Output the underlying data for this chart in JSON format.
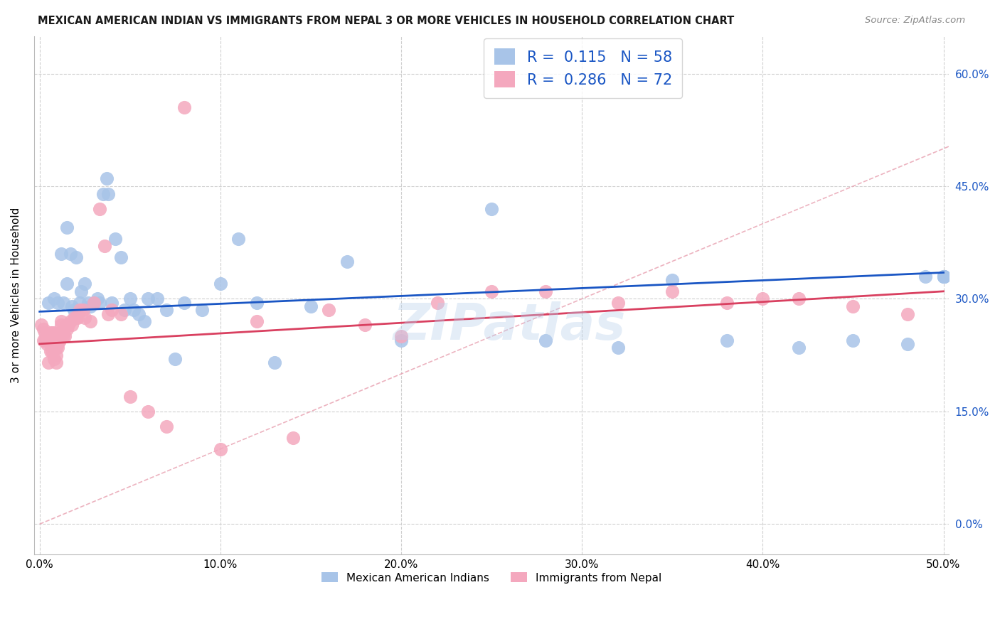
{
  "title": "MEXICAN AMERICAN INDIAN VS IMMIGRANTS FROM NEPAL 3 OR MORE VEHICLES IN HOUSEHOLD CORRELATION CHART",
  "source": "Source: ZipAtlas.com",
  "ylabel": "3 or more Vehicles in Household",
  "blue_R": "0.115",
  "blue_N": "58",
  "pink_R": "0.286",
  "pink_N": "72",
  "blue_color": "#a8c4e8",
  "pink_color": "#f4a8be",
  "blue_line_color": "#1a56c4",
  "pink_line_color": "#d94060",
  "diagonal_color": "#e8a0b0",
  "watermark": "ZIPatlas",
  "xlim": [
    -0.003,
    0.503
  ],
  "ylim": [
    -0.04,
    0.65
  ],
  "xticks": [
    0.0,
    0.1,
    0.2,
    0.3,
    0.4,
    0.5
  ],
  "xticklabels": [
    "0.0%",
    "10.0%",
    "20.0%",
    "30.0%",
    "40.0%",
    "50.0%"
  ],
  "ytick_vals": [
    0.0,
    0.15,
    0.3,
    0.45,
    0.6
  ],
  "right_yticklabels": [
    "0.0%",
    "15.0%",
    "30.0%",
    "45.0%",
    "60.0%"
  ],
  "blue_x": [
    0.005,
    0.008,
    0.01,
    0.012,
    0.013,
    0.015,
    0.015,
    0.017,
    0.018,
    0.019,
    0.02,
    0.022,
    0.023,
    0.025,
    0.027,
    0.028,
    0.03,
    0.032,
    0.033,
    0.035,
    0.037,
    0.038,
    0.04,
    0.042,
    0.045,
    0.047,
    0.05,
    0.052,
    0.055,
    0.058,
    0.06,
    0.065,
    0.07,
    0.075,
    0.08,
    0.09,
    0.1,
    0.11,
    0.12,
    0.13,
    0.15,
    0.17,
    0.2,
    0.25,
    0.28,
    0.32,
    0.35,
    0.38,
    0.42,
    0.45,
    0.48,
    0.49,
    0.5,
    0.5,
    0.5,
    0.5,
    0.5,
    0.5
  ],
  "blue_y": [
    0.295,
    0.3,
    0.295,
    0.36,
    0.295,
    0.395,
    0.32,
    0.36,
    0.29,
    0.285,
    0.355,
    0.295,
    0.31,
    0.32,
    0.295,
    0.29,
    0.295,
    0.3,
    0.295,
    0.44,
    0.46,
    0.44,
    0.295,
    0.38,
    0.355,
    0.285,
    0.3,
    0.285,
    0.28,
    0.27,
    0.3,
    0.3,
    0.285,
    0.22,
    0.295,
    0.285,
    0.32,
    0.38,
    0.295,
    0.215,
    0.29,
    0.35,
    0.245,
    0.42,
    0.245,
    0.235,
    0.325,
    0.245,
    0.235,
    0.245,
    0.24,
    0.33,
    0.33,
    0.33,
    0.33,
    0.33,
    0.33,
    0.33
  ],
  "pink_x": [
    0.001,
    0.002,
    0.002,
    0.003,
    0.003,
    0.004,
    0.004,
    0.005,
    0.005,
    0.005,
    0.006,
    0.006,
    0.006,
    0.007,
    0.007,
    0.007,
    0.008,
    0.008,
    0.008,
    0.008,
    0.009,
    0.009,
    0.009,
    0.009,
    0.01,
    0.01,
    0.01,
    0.011,
    0.011,
    0.012,
    0.012,
    0.013,
    0.013,
    0.014,
    0.015,
    0.015,
    0.016,
    0.017,
    0.018,
    0.019,
    0.02,
    0.021,
    0.022,
    0.024,
    0.025,
    0.028,
    0.03,
    0.033,
    0.036,
    0.038,
    0.04,
    0.045,
    0.05,
    0.06,
    0.07,
    0.08,
    0.1,
    0.12,
    0.14,
    0.16,
    0.18,
    0.2,
    0.22,
    0.25,
    0.28,
    0.32,
    0.35,
    0.38,
    0.4,
    0.42,
    0.45,
    0.48
  ],
  "pink_y": [
    0.265,
    0.26,
    0.245,
    0.255,
    0.245,
    0.25,
    0.24,
    0.25,
    0.245,
    0.215,
    0.255,
    0.24,
    0.23,
    0.255,
    0.245,
    0.23,
    0.255,
    0.245,
    0.235,
    0.22,
    0.245,
    0.235,
    0.225,
    0.215,
    0.245,
    0.24,
    0.235,
    0.255,
    0.245,
    0.27,
    0.265,
    0.255,
    0.25,
    0.25,
    0.265,
    0.26,
    0.265,
    0.27,
    0.265,
    0.275,
    0.275,
    0.275,
    0.285,
    0.285,
    0.275,
    0.27,
    0.295,
    0.42,
    0.37,
    0.28,
    0.285,
    0.28,
    0.17,
    0.15,
    0.13,
    0.555,
    0.1,
    0.27,
    0.115,
    0.285,
    0.265,
    0.25,
    0.295,
    0.31,
    0.31,
    0.295,
    0.31,
    0.295,
    0.3,
    0.3,
    0.29,
    0.28
  ],
  "blue_line_x": [
    0.0,
    0.5
  ],
  "blue_line_y": [
    0.283,
    0.335
  ],
  "pink_line_x": [
    0.0,
    0.5
  ],
  "pink_line_y": [
    0.24,
    0.31
  ]
}
